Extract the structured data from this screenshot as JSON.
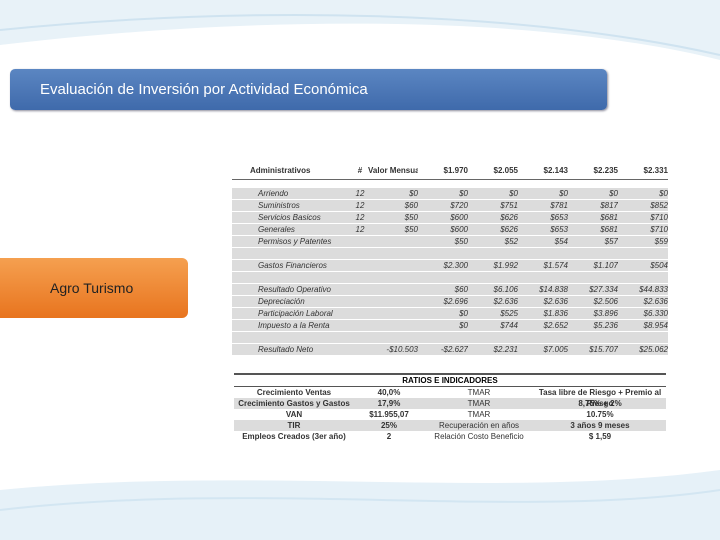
{
  "header": {
    "title": "Evaluación de Inversión por Actividad Económica"
  },
  "sidebar": {
    "label": "Agro Turismo"
  },
  "table": {
    "rows": [
      [
        "Administrativos",
        "#",
        "Valor Mensual",
        "$1.970",
        "$2.055",
        "$2.143",
        "$2.235",
        "$2.331"
      ],
      [
        "Arriendo",
        "12",
        "$0",
        "$0",
        "$0",
        "$0",
        "$0",
        "$0"
      ],
      [
        "Suministros",
        "12",
        "$60",
        "$720",
        "$751",
        "$781",
        "$817",
        "$852"
      ],
      [
        "Servicios Basicos",
        "12",
        "$50",
        "$600",
        "$626",
        "$653",
        "$681",
        "$710"
      ],
      [
        "Generales",
        "12",
        "$50",
        "$600",
        "$626",
        "$653",
        "$681",
        "$710"
      ],
      [
        "Permisos y Patentes",
        null,
        null,
        "$50",
        "$52",
        "$54",
        "$57",
        "$59"
      ],
      null,
      [
        "Gastos Financieros",
        null,
        null,
        "$2.300",
        "$1.992",
        "$1.574",
        "$1.107",
        "$504"
      ],
      null,
      [
        "Resultado Operativo",
        null,
        null,
        "$60",
        "$6.106",
        "$14.838",
        "$27.334",
        "$44.833"
      ],
      [
        "Depreciación",
        null,
        null,
        "$2.696",
        "$2.636",
        "$2.636",
        "$2.506",
        "$2.636"
      ],
      [
        "Participación Laboral",
        null,
        null,
        "$0",
        "$525",
        "$1.836",
        "$3.896",
        "$6.330"
      ],
      [
        "Impuesto a la Renta",
        null,
        null,
        "$0",
        "$744",
        "$2.652",
        "$5.236",
        "$8.954"
      ],
      null,
      [
        "Resultado Neto",
        null,
        "-$10.503",
        "-$2.627",
        "$2.231",
        "$7.005",
        "$15.707",
        "$25.062"
      ]
    ]
  },
  "ratios": {
    "title": "RATIOS E INDICADORES",
    "rows": [
      [
        "Crecimiento Ventas",
        "40,0%",
        "TMAR",
        "Tasa libre de Riesgo + Premio al Riesgo"
      ],
      [
        "Crecimiento Gastos y Gastos",
        "17,9%",
        "TMAR",
        "8,75% + 2%"
      ],
      [
        "VAN",
        "$11.955,07",
        "TMAR",
        "10.75%"
      ],
      [
        "TIR",
        "25%",
        "Recuperación en años",
        "3 años 9 meses"
      ],
      [
        "Empleos Creados (3er año)",
        "2",
        "Relación Costo Beneficio",
        "$ 1,59"
      ]
    ]
  }
}
